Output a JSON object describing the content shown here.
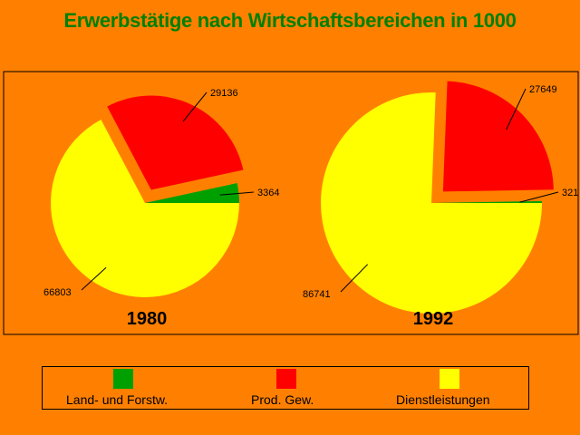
{
  "colors": {
    "background": "#FF8000",
    "title": "#008000",
    "land_forst": "#00A000",
    "prod_gew": "#FF0000",
    "dienst": "#FFFF00"
  },
  "chart_data": {
    "type": "pie",
    "title": "Erwerbstätige nach Wirtschaftsbereichen in 1000",
    "categories": [
      "Land- und Forstw.",
      "Prod. Gew.",
      "Dienstleistungen"
    ],
    "pies": [
      {
        "label": "1980",
        "values": [
          3364,
          29136,
          66803
        ],
        "exploded": "Prod. Gew."
      },
      {
        "label": "1992",
        "values": [
          321,
          27649,
          86741
        ],
        "exploded": "Prod. Gew."
      }
    ],
    "legend_position": "bottom"
  },
  "legend": {
    "items": [
      {
        "label": "Land- und Forstw."
      },
      {
        "label": "Prod. Gew."
      },
      {
        "label": "Dienstleistungen"
      }
    ]
  },
  "value_labels": {
    "p1980": {
      "land": "3364",
      "prod": "29136",
      "dienst": "66803"
    },
    "p1992": {
      "land": "321",
      "prod": "27649",
      "dienst": "86741"
    }
  }
}
